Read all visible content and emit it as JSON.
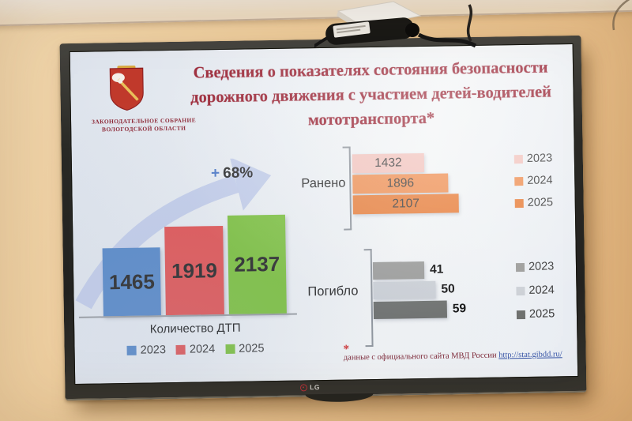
{
  "slide": {
    "logo": {
      "line1": "ЗАКОНОДАТЕЛЬНОЕ СОБРАНИЕ",
      "line2": "ВОЛОГОДСКОЙ ОБЛАСТИ"
    },
    "title": "Сведения о показателях состояния безопасности\nдорожного движения с участием детей-водителей\nмототранспорта*",
    "footnote": {
      "marker": "*",
      "text": "данные с официального сайта МВД России ",
      "link": "http://stat.gibdd.ru/"
    }
  },
  "chart_data": [
    {
      "type": "bar",
      "orientation": "vertical",
      "title": "Количество ДТП",
      "categories": [
        "2023",
        "2024",
        "2025"
      ],
      "values": [
        1465,
        1919,
        2137
      ],
      "colors": [
        "#5b8bc9",
        "#e15858",
        "#7fc242"
      ],
      "annotation": {
        "prefix": "+",
        "value": "68%"
      },
      "value_labels": "inside",
      "legend_position": "bottom"
    },
    {
      "type": "bar",
      "orientation": "horizontal",
      "title": "Ранено",
      "categories": [
        "2023",
        "2024",
        "2025"
      ],
      "values": [
        1432,
        1896,
        2107
      ],
      "colors": [
        "#f2c4be",
        "#ef9257",
        "#e8813f"
      ],
      "value_labels": "inside",
      "legend_position": "right"
    },
    {
      "type": "bar",
      "orientation": "horizontal",
      "title": "Погибло",
      "categories": [
        "2023",
        "2024",
        "2025"
      ],
      "values": [
        41,
        50,
        59
      ],
      "colors": [
        "#9c9c9a",
        "#ccd0d6",
        "#6f716f"
      ],
      "value_labels": "outside",
      "legend_position": "right"
    }
  ],
  "tv": {
    "brand": "LG"
  }
}
